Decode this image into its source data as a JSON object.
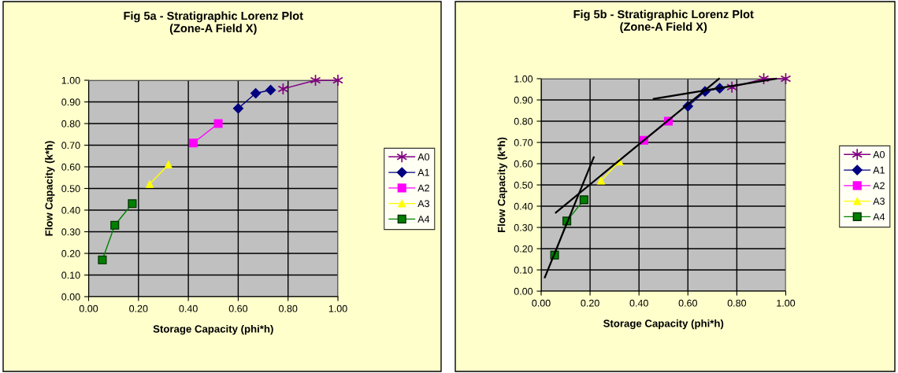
{
  "chart_data": [
    {
      "type": "line",
      "title": "Fig 5a - Stratigraphic Lorenz Plot\n(Zone-A Field X)",
      "xlabel": "Storage Capacity (phi*h)",
      "ylabel": "Flow Capacity (k*h)",
      "xlim": [
        0,
        1
      ],
      "ylim": [
        0,
        1
      ],
      "xticks": [
        {
          "value": 0,
          "label": "0.00"
        },
        {
          "value": 0.2,
          "label": "0.20"
        },
        {
          "value": 0.4,
          "label": "0.40"
        },
        {
          "value": 0.6,
          "label": "0.60"
        },
        {
          "value": 0.8,
          "label": "0.80"
        },
        {
          "value": 1,
          "label": "1.00"
        }
      ],
      "yticks": [
        {
          "value": 0,
          "label": "0.00"
        },
        {
          "value": 0.1,
          "label": "0.10"
        },
        {
          "value": 0.2,
          "label": "0.20"
        },
        {
          "value": 0.3,
          "label": "0.30"
        },
        {
          "value": 0.4,
          "label": "0.40"
        },
        {
          "value": 0.5,
          "label": "0.50"
        },
        {
          "value": 0.6,
          "label": "0.60"
        },
        {
          "value": 0.7,
          "label": "0.70"
        },
        {
          "value": 0.8,
          "label": "0.80"
        },
        {
          "value": 0.9,
          "label": "0.90"
        },
        {
          "value": 1,
          "label": "1.00"
        }
      ],
      "grid": true,
      "legend": "right",
      "series": [
        {
          "name": "A0",
          "color": "#800080",
          "marker": "cross",
          "x": [
            0.78,
            0.91,
            1.0
          ],
          "values": [
            0.96,
            1.0,
            1.0
          ]
        },
        {
          "name": "A1",
          "color": "#000080",
          "marker": "diamond",
          "x": [
            0.6,
            0.67,
            0.73
          ],
          "values": [
            0.87,
            0.94,
            0.955
          ]
        },
        {
          "name": "A2",
          "color": "#ff00ff",
          "marker": "square",
          "x": [
            0.42,
            0.52
          ],
          "values": [
            0.71,
            0.8
          ]
        },
        {
          "name": "A3",
          "color": "#ffff00",
          "marker": "triangle",
          "x": [
            0.245,
            0.32
          ],
          "values": [
            0.52,
            0.61
          ]
        },
        {
          "name": "A4",
          "color": "#008000",
          "marker": "square",
          "x": [
            0.055,
            0.105,
            0.175
          ],
          "values": [
            0.17,
            0.33,
            0.43
          ]
        }
      ]
    },
    {
      "type": "line",
      "title": "Fig 5b - Stratigraphic Lorenz Plot\n(Zone-A Field X)",
      "xlabel": "Storage Capacity (phi*h)",
      "ylabel": "Flow Capacity (k*h)",
      "xlim": [
        0,
        1
      ],
      "ylim": [
        0,
        1
      ],
      "xticks": [
        {
          "value": 0,
          "label": "0.00"
        },
        {
          "value": 0.2,
          "label": "0.20"
        },
        {
          "value": 0.4,
          "label": "0.40"
        },
        {
          "value": 0.6,
          "label": "0.60"
        },
        {
          "value": 0.8,
          "label": "0.80"
        },
        {
          "value": 1,
          "label": "1.00"
        }
      ],
      "yticks": [
        {
          "value": 0,
          "label": "0.00"
        },
        {
          "value": 0.1,
          "label": "0.10"
        },
        {
          "value": 0.2,
          "label": "0.20"
        },
        {
          "value": 0.3,
          "label": "0.30"
        },
        {
          "value": 0.4,
          "label": "0.40"
        },
        {
          "value": 0.5,
          "label": "0.50"
        },
        {
          "value": 0.6,
          "label": "0.60"
        },
        {
          "value": 0.7,
          "label": "0.70"
        },
        {
          "value": 0.8,
          "label": "0.80"
        },
        {
          "value": 0.9,
          "label": "0.90"
        },
        {
          "value": 1,
          "label": "1.00"
        }
      ],
      "grid": true,
      "legend": "right",
      "series": [
        {
          "name": "A0",
          "color": "#800080",
          "marker": "cross",
          "x": [
            0.78,
            0.91,
            1.0
          ],
          "values": [
            0.96,
            1.0,
            1.0
          ]
        },
        {
          "name": "A1",
          "color": "#000080",
          "marker": "diamond",
          "x": [
            0.6,
            0.67,
            0.73
          ],
          "values": [
            0.87,
            0.94,
            0.955
          ]
        },
        {
          "name": "A2",
          "color": "#ff00ff",
          "marker": "square",
          "x": [
            0.42,
            0.52
          ],
          "values": [
            0.71,
            0.8
          ]
        },
        {
          "name": "A3",
          "color": "#ffff00",
          "marker": "triangle",
          "x": [
            0.245,
            0.32
          ],
          "values": [
            0.52,
            0.61
          ]
        },
        {
          "name": "A4",
          "color": "#008000",
          "marker": "square",
          "x": [
            0.055,
            0.105,
            0.175
          ],
          "values": [
            0.17,
            0.33,
            0.43
          ]
        },
        {
          "type": "line",
          "color": "#000000",
          "marker": "none",
          "x": [
            0.015,
            0.215
          ],
          "values": [
            0.065,
            0.63
          ]
        },
        {
          "type": "line",
          "color": "#000000",
          "marker": "none",
          "x": [
            0.06,
            0.727
          ],
          "values": [
            0.37,
            1.0
          ]
        },
        {
          "type": "line",
          "color": "#000000",
          "marker": "none",
          "x": [
            0.46,
            0.96
          ],
          "values": [
            0.905,
            1.0
          ]
        }
      ]
    }
  ]
}
